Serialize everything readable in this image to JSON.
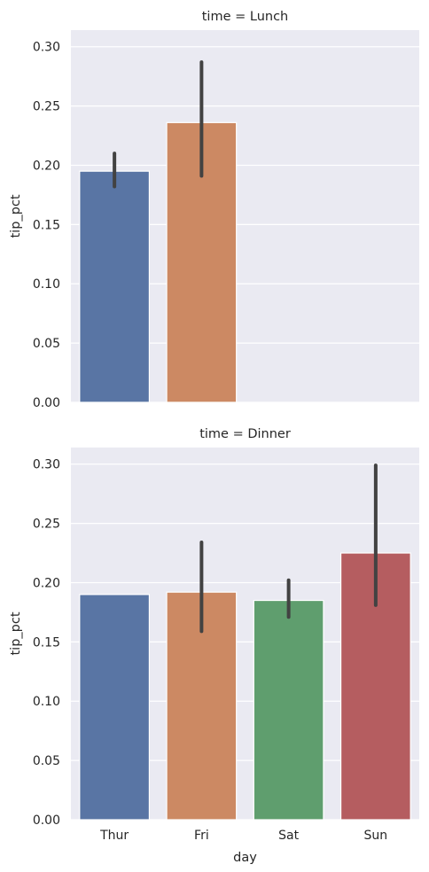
{
  "chart_data": [
    {
      "type": "bar",
      "title": "time = Lunch",
      "xlabel": "",
      "ylabel": "tip_pct",
      "ylim": [
        0,
        0.314
      ],
      "yticks": [
        "0.00",
        "0.05",
        "0.10",
        "0.15",
        "0.20",
        "0.25",
        "0.30"
      ],
      "grid": true,
      "categories": [
        "Thur",
        "Fri",
        "Sat",
        "Sun"
      ],
      "values": [
        0.195,
        0.236,
        null,
        null
      ],
      "ci_low": [
        0.182,
        0.191,
        null,
        null
      ],
      "ci_high": [
        0.21,
        0.287,
        null,
        null
      ],
      "colors": [
        "#5975a4",
        "#cc8963",
        "#5f9e6e",
        "#b55d60"
      ]
    },
    {
      "type": "bar",
      "title": "time = Dinner",
      "xlabel": "day",
      "ylabel": "tip_pct",
      "ylim": [
        0,
        0.314
      ],
      "yticks": [
        "0.00",
        "0.05",
        "0.10",
        "0.15",
        "0.20",
        "0.25",
        "0.30"
      ],
      "grid": true,
      "categories": [
        "Thur",
        "Fri",
        "Sat",
        "Sun"
      ],
      "values": [
        0.19,
        0.192,
        0.185,
        0.225
      ],
      "ci_low": [
        0.19,
        0.159,
        0.171,
        0.181
      ],
      "ci_high": [
        0.19,
        0.234,
        0.202,
        0.299
      ],
      "colors": [
        "#5975a4",
        "#cc8963",
        "#5f9e6e",
        "#b55d60"
      ]
    }
  ]
}
